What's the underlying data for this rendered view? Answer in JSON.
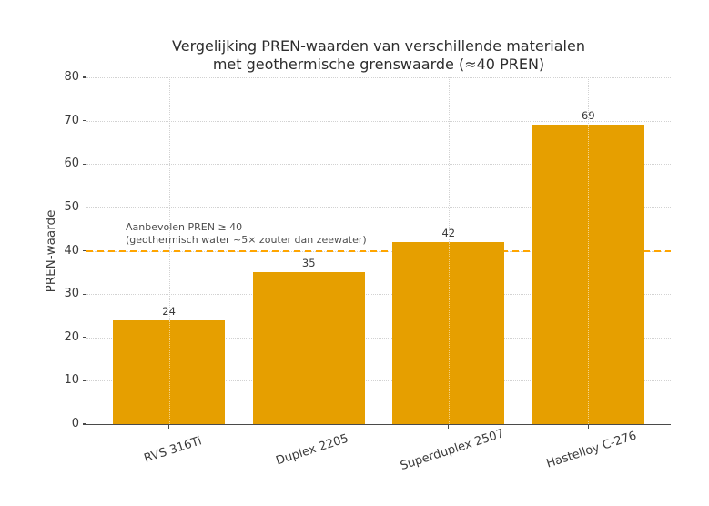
{
  "chart_data": {
    "type": "bar",
    "title_lines": [
      "Vergelijking PREN-waarden van verschillende materialen",
      "met geothermische grenswaarde (≈40 PREN)"
    ],
    "categories": [
      "RVS 316Ti",
      "Duplex 2205",
      "Superduplex 2507",
      "Hastelloy C-276"
    ],
    "values": [
      24,
      35,
      42,
      69
    ],
    "bar_value_labels": [
      "24",
      "35",
      "42",
      "69"
    ],
    "xlabel": "",
    "ylabel": "PREN-waarde",
    "ylim": [
      0,
      80
    ],
    "ytick_step": 10,
    "ytick_labels": [
      "0",
      "10",
      "20",
      "30",
      "40",
      "50",
      "60",
      "70",
      "80"
    ],
    "grid": {
      "style": "dotted",
      "axes": "both"
    },
    "legend": "none",
    "threshold": {
      "value": 40,
      "style": "dashed",
      "label_line1": "Aanbevolen PREN ≥ 40",
      "label_line2": "(geothermisch water ~5× zouter dan zeewater)"
    },
    "colors": {
      "bar": "#E69F00",
      "threshold_line": "#FFA500",
      "grid": "#d2d2d2",
      "axis": "#4a4a4a",
      "title_text": "#2d2d2d",
      "annotation_text": "#4d4d4d"
    }
  }
}
